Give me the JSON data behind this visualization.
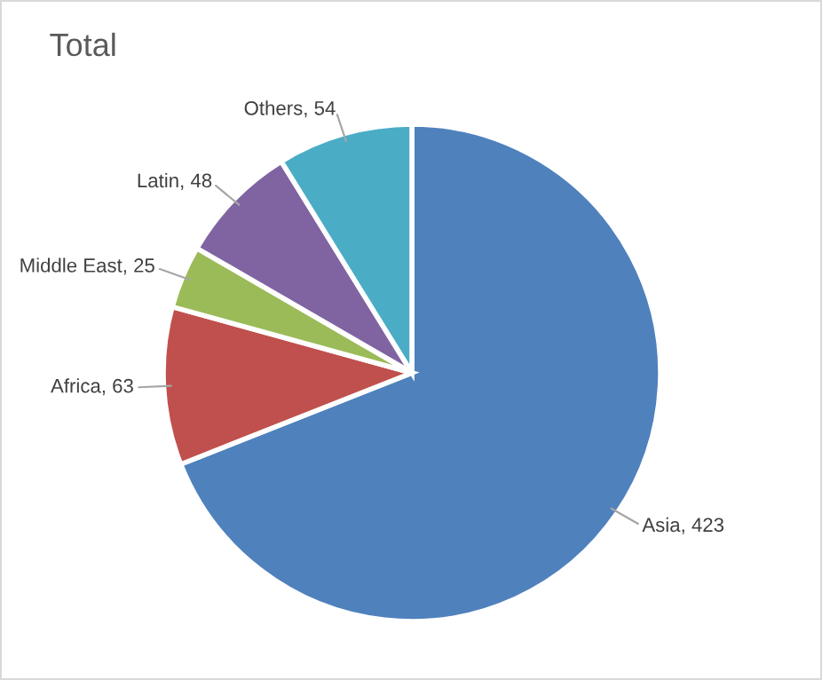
{
  "chart_data": {
    "type": "pie",
    "title": "Total",
    "categories": [
      "Asia",
      "Africa",
      "Middle East",
      "Latin",
      "Others"
    ],
    "values": [
      423,
      63,
      25,
      48,
      54
    ],
    "colors": [
      "#4f81bd",
      "#c0504d",
      "#9bbb59",
      "#8064a2",
      "#4bacc6"
    ],
    "value_labels": [
      ", 423",
      ", 63",
      ", 25",
      ", 48",
      ", 54"
    ]
  }
}
